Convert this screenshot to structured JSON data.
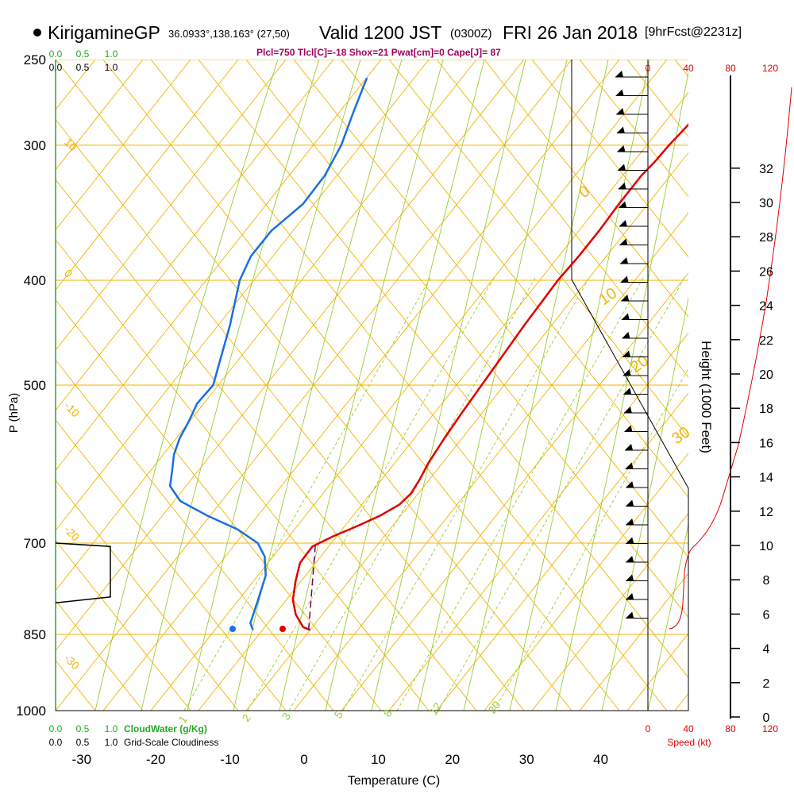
{
  "header": {
    "station": "KirigamineGP",
    "coords": "36.0933°,138.163° (27,50)",
    "valid": "Valid 1200 JST",
    "utc": "(0300Z)",
    "date": "FRI 26 Jan 2018",
    "forecast": "[9hrFcst@2231z]",
    "stats": "Plcl=750 Tlcl[C]=-18 Shox=21 Pwat[cm]=0 Cape[J]= 87"
  },
  "colors": {
    "temperature": "#e00000",
    "dewpoint": "#1a6fe0",
    "isobar": "#f0b400",
    "dry_adiabat": "#f0b400",
    "moist_adiabat": "#9acd32",
    "mixing_ratio": "#9acd32",
    "cloudwater": "#22aa22",
    "parcel": "#7a0050"
  },
  "chart_data": {
    "type": "line",
    "xlabel": "Temperature (C)",
    "ylabel": "P (hPa)",
    "right_ylabel": "Height (1000 Feet)",
    "x_ticks": [
      "-30",
      "-20",
      "-10",
      "0",
      "10",
      "20",
      "30",
      "40"
    ],
    "p_ticks": [
      "250",
      "300",
      "400",
      "500",
      "700",
      "850",
      "1000"
    ],
    "height_ticks": [
      "0",
      "2",
      "4",
      "6",
      "8",
      "10",
      "12",
      "14",
      "16",
      "18",
      "20",
      "22",
      "24",
      "26",
      "28",
      "30",
      "32"
    ],
    "speed_ticks": [
      "0",
      "40",
      "80",
      "120"
    ],
    "speed_label": "Speed (kt)",
    "top_scale_green": [
      "0.0",
      "0.5",
      "1.0"
    ],
    "top_scale_black": [
      "0.0",
      "0.5",
      "1.0"
    ],
    "bottom_cloudwater": [
      "0.0",
      "0.5",
      "1.0"
    ],
    "bottom_cloudwater_label": "CloudWater (g/Kg)",
    "bottom_cloudiness": [
      "0.0",
      "0.5",
      "1.0"
    ],
    "bottom_cloudiness_label": "Grid-Scale Cloudiness",
    "dry_adiabat_labels": [
      "10",
      "0",
      "-10",
      "-20",
      "-30"
    ],
    "moist_adiabat_labels": [
      "0",
      "10",
      "20",
      "30"
    ],
    "mixing_ratio_labels": [
      "1",
      "2",
      "3",
      "5",
      "8",
      "12",
      "20"
    ],
    "series": [
      {
        "key": "temperature",
        "points": [
          [
            -3.6,
            842
          ],
          [
            -4.8,
            837
          ],
          [
            -7.0,
            815
          ],
          [
            -8.8,
            790
          ],
          [
            -10.2,
            760
          ],
          [
            -11.4,
            730
          ],
          [
            -11.3,
            705
          ],
          [
            -9.5,
            690
          ],
          [
            -7.2,
            675
          ],
          [
            -5.1,
            660
          ],
          [
            -3.6,
            645
          ],
          [
            -3.1,
            630
          ],
          [
            -3.3,
            610
          ],
          [
            -3.7,
            590
          ],
          [
            -3.9,
            560
          ],
          [
            -4.0,
            530
          ],
          [
            -4.0,
            500
          ],
          [
            -4.0,
            480
          ],
          [
            -4.0,
            460
          ],
          [
            -4.0,
            440
          ],
          [
            -3.9,
            420
          ],
          [
            -3.8,
            400
          ],
          [
            -3.3,
            380
          ],
          [
            -3.0,
            360
          ],
          [
            -2.9,
            340
          ],
          [
            -2.6,
            320
          ],
          [
            -2.1,
            310
          ],
          [
            -1.8,
            300
          ],
          [
            -1.3,
            290
          ],
          [
            -0.8,
            280
          ],
          [
            -0.3,
            270
          ],
          [
            0.2,
            260
          ]
        ]
      },
      {
        "key": "dewpoint",
        "points": [
          [
            -11.3,
            842
          ],
          [
            -12.3,
            830
          ],
          [
            -13.5,
            790
          ],
          [
            -14.8,
            750
          ],
          [
            -16.8,
            720
          ],
          [
            -19.0,
            700
          ],
          [
            -23.0,
            680
          ],
          [
            -28.5,
            660
          ],
          [
            -33.5,
            640
          ],
          [
            -36.3,
            620
          ],
          [
            -37.5,
            600
          ],
          [
            -38.8,
            580
          ],
          [
            -39.6,
            560
          ],
          [
            -40.0,
            540
          ],
          [
            -40.6,
            520
          ],
          [
            -40.2,
            500
          ],
          [
            -41.9,
            470
          ],
          [
            -43.7,
            440
          ],
          [
            -46.7,
            400
          ],
          [
            -47.5,
            380
          ],
          [
            -47.2,
            360
          ],
          [
            -45.5,
            340
          ],
          [
            -45.3,
            320
          ],
          [
            -46.0,
            300
          ],
          [
            -47.5,
            280
          ],
          [
            -49.0,
            260
          ]
        ]
      },
      {
        "key": "parcel",
        "points": [
          [
            -3.8,
            842
          ],
          [
            -11.2,
            700
          ]
        ]
      }
    ],
    "surface_temperature": -3.0,
    "surface_dewpoint": -9.8,
    "surface_pressure": 845,
    "cloudiness_profile": [
      [
        0.0,
        700
      ],
      [
        0.75,
        705
      ],
      [
        0.75,
        785
      ],
      [
        0.0,
        795
      ]
    ],
    "hodograph_note": "wind speed profile"
  }
}
